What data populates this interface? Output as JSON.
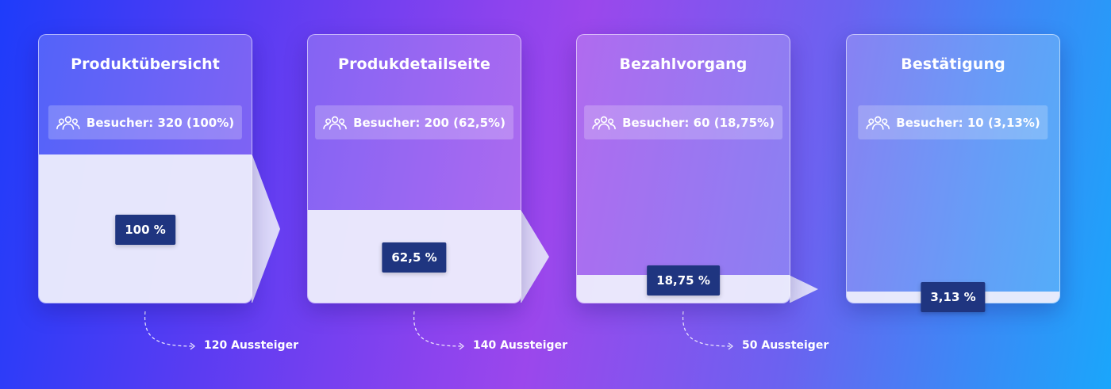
{
  "chart_data": {
    "type": "bar",
    "categories": [
      "Produktübersicht",
      "Produkdetailseite",
      "Bezahlvorgang",
      "Bestätigung"
    ],
    "values": [
      100,
      62.5,
      18.75,
      3.13
    ],
    "visitors_labels": [
      "Besucher: 320 (100%)",
      "Besucher: 200 (62,5%)",
      "Besucher: 60 (18,75%)",
      "Besucher: 10 (3,13%)"
    ],
    "percent_labels": [
      "100 %",
      "62,5 %",
      "18,75 %",
      "3,13 %"
    ],
    "dropoff_labels": [
      "120 Aussteiger",
      "140 Aussteiger",
      "50 Aussteiger"
    ],
    "ylim": [
      0,
      100
    ],
    "icon": "people-group-icon",
    "colors": {
      "fill": "#eeeefc",
      "badge_dark": "#1f3580",
      "text": "#ffffff"
    }
  }
}
